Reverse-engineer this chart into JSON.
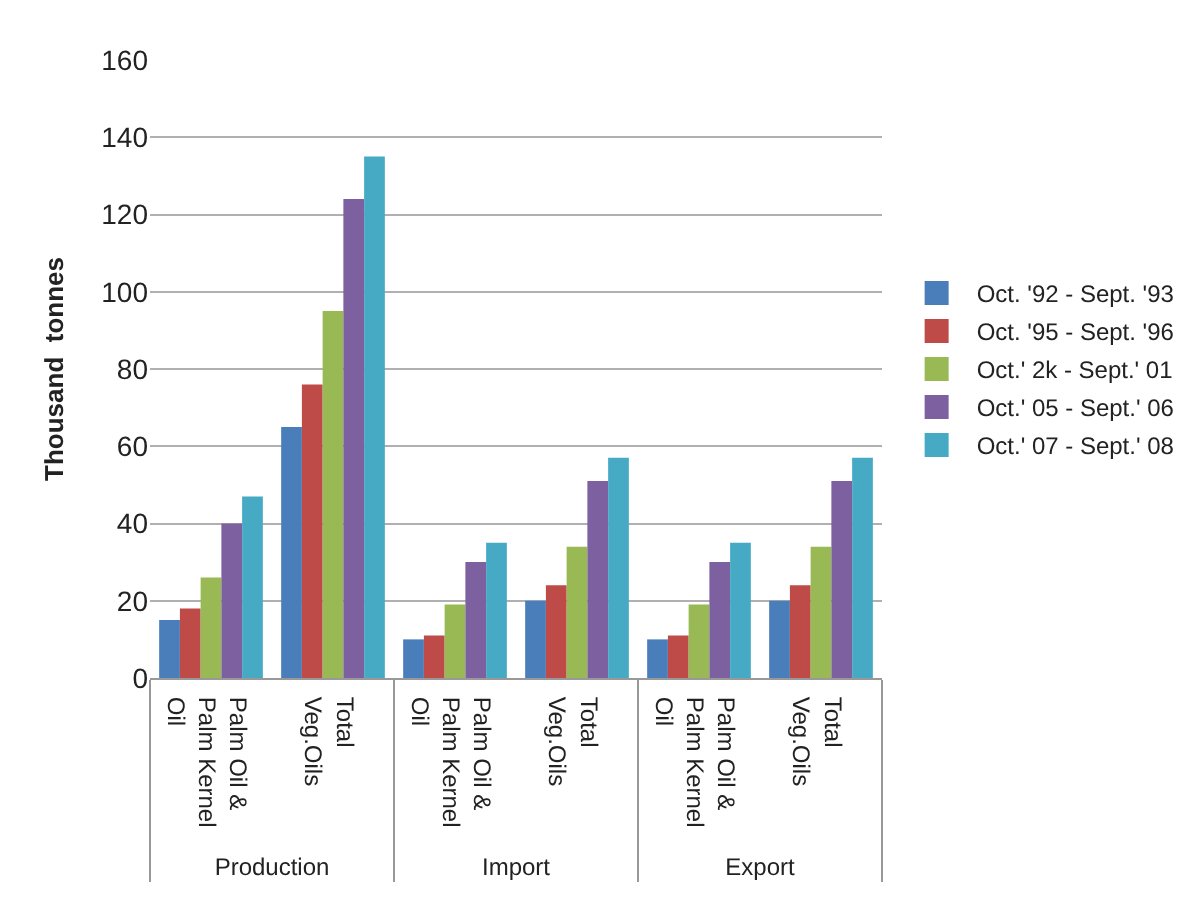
{
  "chart_data": {
    "type": "bar",
    "ylabel": "Thousand  tonnes",
    "categories": [
      "Palm Oil & Palm Kernel Oil",
      "Total Veg.Oils",
      "Palm Oil & Palm Kernel Oil",
      "Total Veg.Oils",
      "Palm Oil & Palm Kernel Oil",
      "Total Veg.Oils"
    ],
    "annotations": [
      "Production",
      "Import",
      "Export"
    ],
    "series": [
      {
        "name": "Oct. '92 - Sept. '93",
        "color": "#4a7ebb",
        "values": [
          15,
          65,
          10,
          20,
          10,
          20
        ]
      },
      {
        "name": "Oct. '95 - Sept. '96",
        "color": "#be4b48",
        "values": [
          18,
          76,
          11,
          24,
          11,
          24
        ]
      },
      {
        "name": "Oct.' 2k - Sept.' 01",
        "color": "#98b954",
        "values": [
          26,
          95,
          19,
          34,
          19,
          34
        ]
      },
      {
        "name": "Oct.' 05 - Sept.' 06",
        "color": "#7d60a0",
        "values": [
          40,
          124,
          30,
          51,
          30,
          51
        ]
      },
      {
        "name": "Oct.' 07 - Sept.' 08",
        "color": "#46aac5",
        "values": [
          47,
          135,
          35,
          57,
          35,
          57
        ]
      }
    ],
    "ylim": [
      0,
      160
    ],
    "yticks": [
      0,
      20,
      40,
      60,
      80,
      100,
      120,
      140,
      160
    ],
    "grid": "y",
    "legend": "right"
  }
}
